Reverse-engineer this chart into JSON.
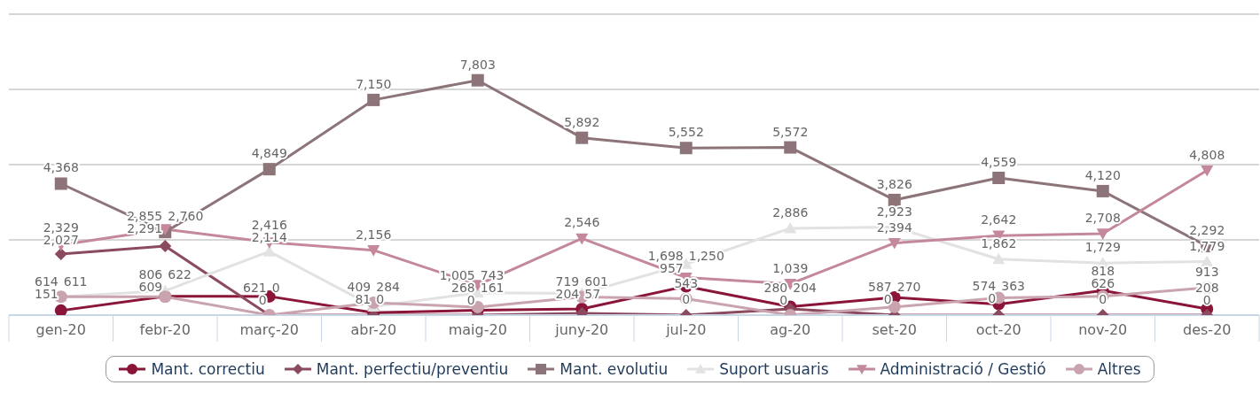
{
  "chart_data": {
    "type": "line",
    "categories": [
      "gen-20",
      "febr-20",
      "març-20",
      "abr-20",
      "maig-20",
      "juny-20",
      "jul-20",
      "ag-20",
      "set-20",
      "oct-20",
      "nov-20",
      "des-20"
    ],
    "series": [
      {
        "name": "Mant. correctiu",
        "color": "#8b1538",
        "marker": "circle",
        "values": [
          151,
          622,
          621,
          81,
          161,
          204,
          957,
          280,
          587,
          363,
          818,
          208
        ],
        "value_labels": [
          "151",
          "622",
          "621",
          "81",
          "161",
          "204",
          "957",
          "280",
          "587",
          "363",
          "818",
          "208"
        ]
      },
      {
        "name": "Mant. perfectiu/preventiu",
        "color": "#8b4a5e",
        "marker": "diamond",
        "values": [
          2027,
          2291,
          0,
          0,
          0,
          57,
          0,
          204,
          0,
          0,
          0,
          0
        ],
        "value_labels": [
          "2,027",
          "2,291",
          "0",
          "0",
          "0",
          "57",
          "0",
          "204",
          "0",
          "0",
          "0",
          "0"
        ]
      },
      {
        "name": "Mant. evolutiu",
        "color": "#8c7479",
        "marker": "square",
        "values": [
          4368,
          2760,
          4849,
          7150,
          7803,
          5892,
          5552,
          5572,
          3826,
          4559,
          4120,
          2292
        ],
        "value_labels": [
          "4,368",
          "2,760",
          "4,849",
          "7,150",
          "7,803",
          "5,892",
          "5,552",
          "5,572",
          "3,826",
          "4,559",
          "4,120",
          "2,292"
        ]
      },
      {
        "name": "Suport usuaris",
        "color": "#e2e2e2",
        "marker": "triangle",
        "values": [
          614,
          806,
          2114,
          284,
          743,
          719,
          1698,
          2886,
          2923,
          1862,
          1729,
          1779
        ],
        "value_labels": [
          "614",
          "806",
          "2,114",
          "284",
          "743",
          "719",
          "1,698",
          "2,886",
          "2,923",
          "1,862",
          "1,729",
          "1,779"
        ]
      },
      {
        "name": "Administració / Gestió",
        "color": "#c4889a",
        "marker": "triangle-down",
        "values": [
          2329,
          2855,
          2416,
          2156,
          1005,
          2546,
          1250,
          1039,
          2394,
          2642,
          2708,
          4808
        ],
        "value_labels": [
          "2,329",
          "2,855",
          "2,416",
          "2,156",
          "1,005",
          "2,546",
          "1,250",
          "1,039",
          "2,394",
          "2,642",
          "2,708",
          "4,808"
        ]
      },
      {
        "name": "Altres",
        "color": "#c9a3ad",
        "marker": "circle",
        "values": [
          611,
          609,
          0,
          409,
          268,
          601,
          543,
          0,
          270,
          574,
          626,
          913
        ],
        "value_labels": [
          "611",
          "609",
          "0",
          "409",
          "268",
          "601",
          "543",
          "0",
          "270",
          "574",
          "626",
          "913"
        ]
      }
    ],
    "ylim": [
      0,
      10000
    ],
    "yticks": [
      {
        "value": 0,
        "label": null
      },
      {
        "value": 2500,
        "label": null
      },
      {
        "value": 5000,
        "label": null
      },
      {
        "value": 7500,
        "label": null
      },
      {
        "value": 10000,
        "label": null
      }
    ],
    "tick_labels": "x",
    "grid": "y",
    "legend": "bottom"
  }
}
